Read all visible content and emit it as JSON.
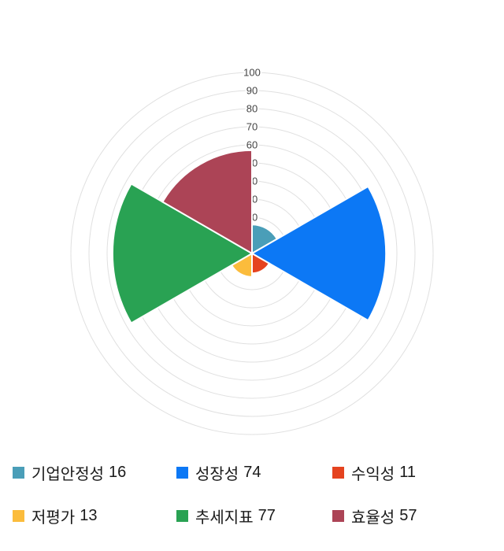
{
  "chart_data": {
    "type": "polar_area",
    "title": "",
    "categories": [
      "기업안정성",
      "성장성",
      "수익성",
      "저평가",
      "추세지표",
      "효율성"
    ],
    "values": [
      16,
      74,
      11,
      13,
      77,
      57
    ],
    "colors": [
      "#4A9EB8",
      "#0C78F5",
      "#E5431F",
      "#FBBC3C",
      "#29A253",
      "#AC4456"
    ],
    "axis": {
      "min": 0,
      "max": 100,
      "step": 10,
      "tick_labels": [
        "0",
        "10",
        "20",
        "30",
        "40",
        "50",
        "60",
        "70",
        "80",
        "90",
        "100"
      ]
    },
    "start_angle_deg": 0,
    "direction": "clockwise",
    "sector_span_deg": 60,
    "grid": true,
    "grid_color": "#E0E0E0",
    "tick_label_color": "#444444",
    "sector_stroke_color": "#FFFFFF",
    "legend_position": "bottom"
  },
  "legend": {
    "items": [
      {
        "label": "기업안정성",
        "value": "16",
        "color": "#4A9EB8"
      },
      {
        "label": "성장성",
        "value": "74",
        "color": "#0C78F5"
      },
      {
        "label": "수익성",
        "value": "11",
        "color": "#E5431F"
      },
      {
        "label": "저평가",
        "value": "13",
        "color": "#FBBC3C"
      },
      {
        "label": "추세지표",
        "value": "77",
        "color": "#29A253"
      },
      {
        "label": "효율성",
        "value": "57",
        "color": "#AC4456"
      }
    ]
  }
}
